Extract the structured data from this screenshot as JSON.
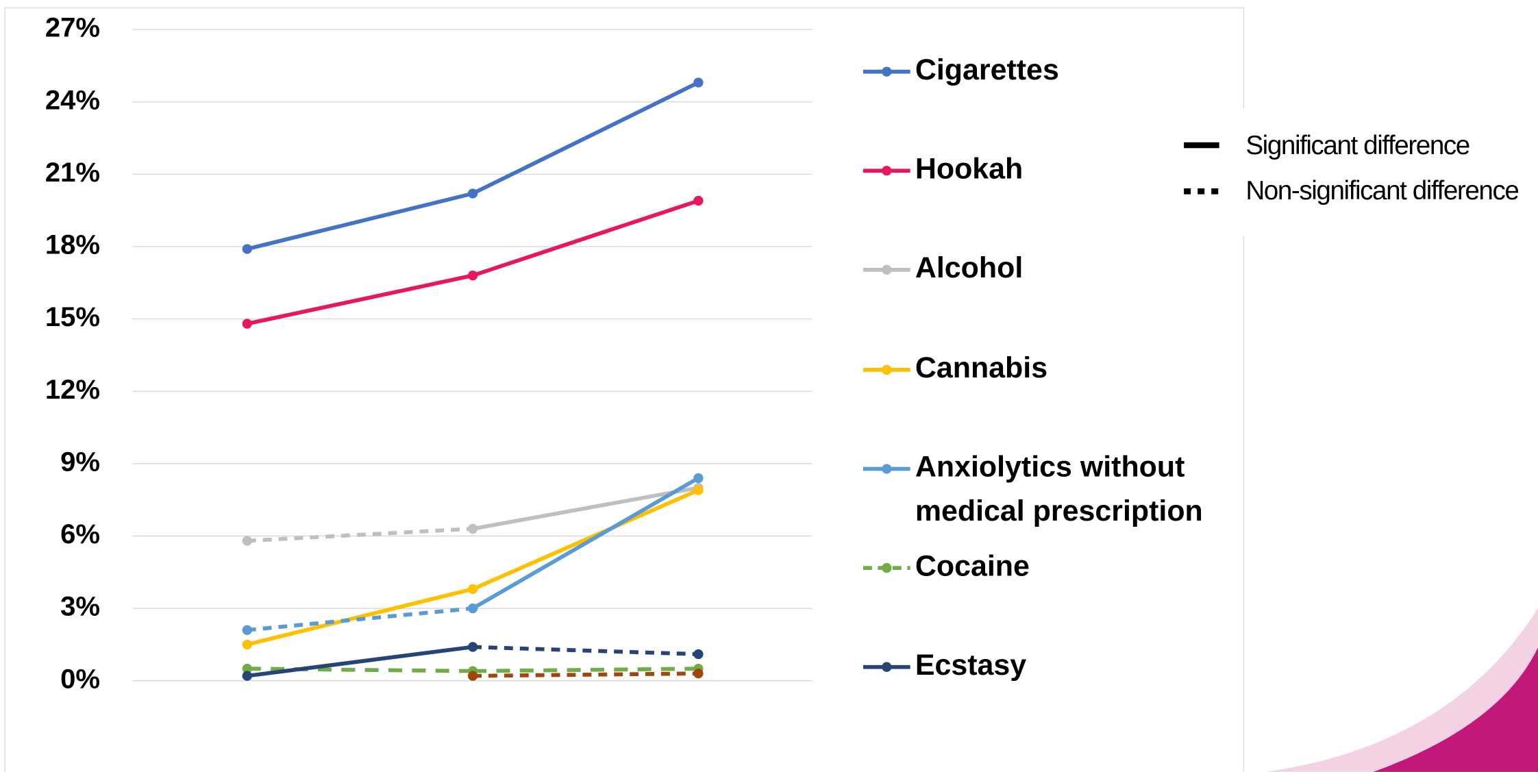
{
  "chart_data": {
    "type": "line",
    "categories": [
      null,
      null,
      null
    ],
    "ylim": [
      0,
      27
    ],
    "yticks": [
      {
        "value": 0,
        "label": "0%"
      },
      {
        "value": 3,
        "label": "3%"
      },
      {
        "value": 6,
        "label": "6%"
      },
      {
        "value": 9,
        "label": "9%"
      },
      {
        "value": 12,
        "label": "12%"
      },
      {
        "value": 15,
        "label": "15%"
      },
      {
        "value": 18,
        "label": "18%"
      },
      {
        "value": 21,
        "label": "21%"
      },
      {
        "value": 24,
        "label": "24%"
      },
      {
        "value": 27,
        "label": "27%"
      }
    ],
    "grid": true,
    "series": [
      {
        "name": "Cigarettes",
        "color": "#4472c4",
        "values": [
          17.9,
          20.2,
          24.8
        ],
        "segments": [
          "solid",
          "solid"
        ]
      },
      {
        "name": "Hookah",
        "color": "#e8175d",
        "values": [
          14.8,
          16.8,
          19.9
        ],
        "segments": [
          "solid",
          "solid"
        ]
      },
      {
        "name": "Alcohol",
        "color": "#bfbfbf",
        "values": [
          5.8,
          6.3,
          8.0
        ],
        "segments": [
          "dashed",
          "solid"
        ]
      },
      {
        "name": "Cannabis",
        "color": "#ffc000",
        "values": [
          1.5,
          3.8,
          7.9
        ],
        "segments": [
          "solid",
          "solid"
        ]
      },
      {
        "name": "Anxiolytics without medical prescription",
        "color": "#5b9bd5",
        "values": [
          2.1,
          3.0,
          8.4
        ],
        "segments": [
          "dashed",
          "solid"
        ]
      },
      {
        "name": "Cocaine",
        "color": "#70ad47",
        "values": [
          0.5,
          0.4,
          0.5
        ],
        "segments": [
          "dashed",
          "dashed"
        ]
      },
      {
        "name": "Ecstasy",
        "color": "#264478",
        "values": [
          0.2,
          1.4,
          1.1
        ],
        "segments": [
          "solid",
          "dashed"
        ]
      },
      {
        "color": "#9e480e",
        "values": [
          null,
          0.2,
          0.3
        ],
        "segments": [
          "dashed",
          "dashed"
        ]
      }
    ],
    "significance_legend": [
      "Significant difference",
      "Non-significant difference"
    ]
  }
}
